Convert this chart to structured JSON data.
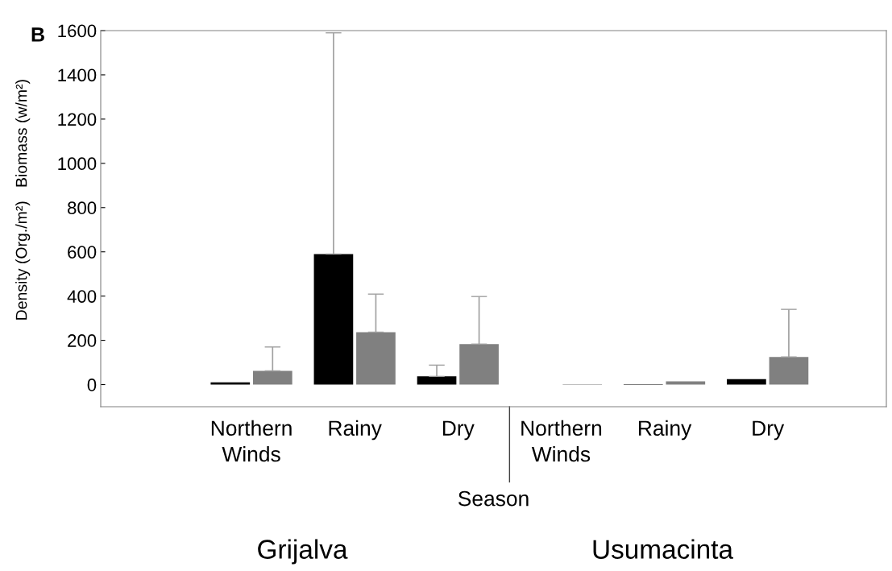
{
  "chart_data": {
    "type": "bar",
    "annotations": [
      "B",
      "Grijalva",
      "Usumacinta"
    ],
    "xlabel": "Season",
    "ylabel": "Density (Org./m²)   Biomass (w/m²)",
    "categories": [
      "Northern\nWinds",
      "Rainy",
      "Dry",
      "Northern\nWinds",
      "Rainy",
      "Dry"
    ],
    "series": [
      {
        "color": "#000000",
        "values": [
          10,
          590,
          37,
          0,
          2,
          25
        ],
        "errors": [
          [
            10,
            10
          ],
          [
            590,
            1590
          ],
          [
            37,
            88
          ],
          [
            0,
            0
          ],
          [
            2,
            2
          ],
          [
            25,
            25
          ]
        ]
      },
      {
        "color": "#808080",
        "values": [
          62,
          237,
          183,
          2,
          15,
          125
        ],
        "errors": [
          [
            62,
            170
          ],
          [
            237,
            409
          ],
          [
            183,
            398
          ],
          [
            2,
            2
          ],
          [
            15,
            15
          ],
          [
            125,
            340
          ]
        ]
      }
    ],
    "ylim": [
      -100,
      1600
    ],
    "yticks": [
      0,
      200,
      400,
      600,
      800,
      1000,
      1200,
      1400,
      1600
    ],
    "grid": false,
    "legend": false
  }
}
